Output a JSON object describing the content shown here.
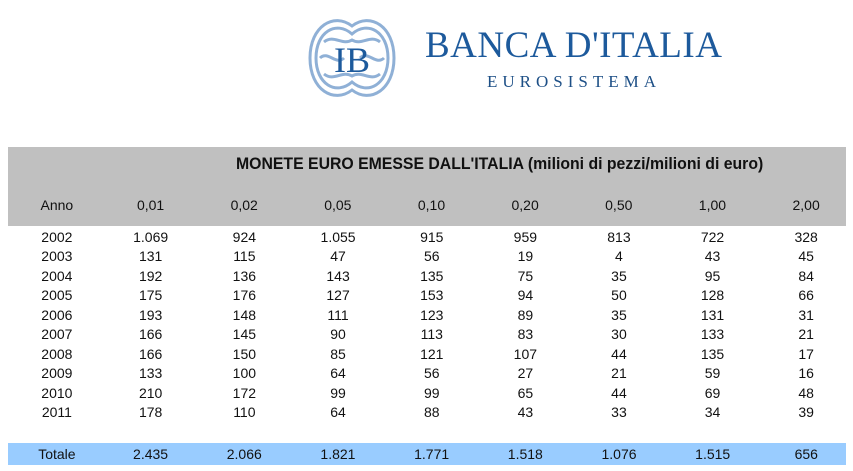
{
  "logo": {
    "name": "BANCA D'ITALIA",
    "subtitle": "EUROSISTEMA",
    "monogram": "IB"
  },
  "table": {
    "title": "MONETE EURO EMESSE DALL'ITALIA (milioni di pezzi/milioni di euro)",
    "headers": [
      "Anno",
      "0,01",
      "0,02",
      "0,05",
      "0,10",
      "0,20",
      "0,50",
      "1,00",
      "2,00"
    ],
    "rows": [
      [
        "2002",
        "1.069",
        "924",
        "1.055",
        "915",
        "959",
        "813",
        "722",
        "328"
      ],
      [
        "2003",
        "131",
        "115",
        "47",
        "56",
        "19",
        "4",
        "43",
        "45"
      ],
      [
        "2004",
        "192",
        "136",
        "143",
        "135",
        "75",
        "35",
        "95",
        "84"
      ],
      [
        "2005",
        "175",
        "176",
        "127",
        "153",
        "94",
        "50",
        "128",
        "66"
      ],
      [
        "2006",
        "193",
        "148",
        "111",
        "123",
        "89",
        "35",
        "131",
        "31"
      ],
      [
        "2007",
        "166",
        "145",
        "90",
        "113",
        "83",
        "30",
        "133",
        "21"
      ],
      [
        "2008",
        "166",
        "150",
        "85",
        "121",
        "107",
        "44",
        "135",
        "17"
      ],
      [
        "2009",
        "133",
        "100",
        "64",
        "56",
        "27",
        "21",
        "59",
        "16"
      ],
      [
        "2010",
        "210",
        "172",
        "99",
        "99",
        "65",
        "44",
        "69",
        "48"
      ],
      [
        "2011",
        "178",
        "110",
        "64",
        "88",
        "43",
        "33",
        "34",
        "39"
      ]
    ],
    "total": [
      "Totale",
      "2.435",
      "2.066",
      "1.821",
      "1.771",
      "1.518",
      "1.076",
      "1.515",
      "656"
    ]
  },
  "colors": {
    "header_bg": "#c0c0c0",
    "total_bg": "#99ccff",
    "brand": "#1d5a9c"
  }
}
